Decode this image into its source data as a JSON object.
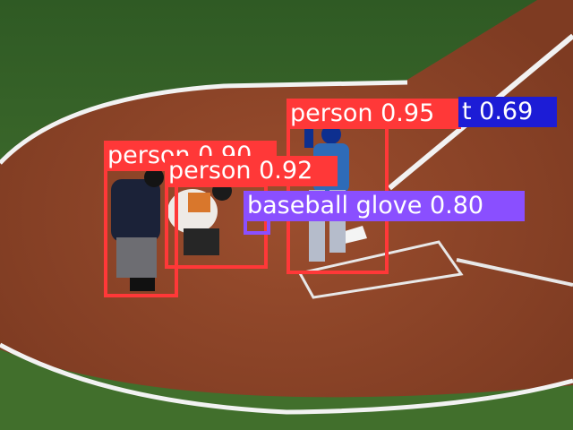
{
  "colors": {
    "person": "#ff3838",
    "baseball_glove": "#8a4fff",
    "baseball_bat": "#1c1cd6"
  },
  "detections": [
    {
      "id": "person-umpire",
      "label_text": "person 0.90",
      "class": "person",
      "confidence": 0.9
    },
    {
      "id": "person-catcher",
      "label_text": "person 0.92",
      "class": "person",
      "confidence": 0.92
    },
    {
      "id": "person-batter",
      "label_text": "person 0.95",
      "class": "person",
      "confidence": 0.95
    },
    {
      "id": "baseball-glove",
      "label_text": "baseball glove 0.80",
      "class": "baseball glove",
      "confidence": 0.8
    },
    {
      "id": "baseball-bat",
      "label_text": "t 0.69",
      "class": "baseball bat",
      "confidence": 0.69
    }
  ]
}
